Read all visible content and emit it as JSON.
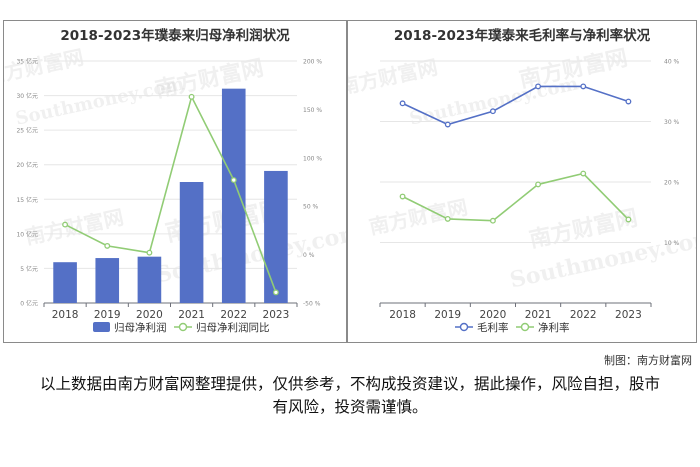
{
  "charts": [
    {
      "title": "2018-2023年璞泰来归母净利润状况",
      "chart_data": {
        "type": "bar",
        "categories": [
          "2018",
          "2019",
          "2020",
          "2021",
          "2022",
          "2023"
        ],
        "series": [
          {
            "name": "归母净利润",
            "type": "bar",
            "axis": "left",
            "color": "#5470c6",
            "values": [
              5.9,
              6.5,
              6.7,
              17.5,
              31.0,
              19.1
            ]
          },
          {
            "name": "归母净利润同比",
            "type": "line",
            "axis": "right",
            "color": "#91cc75",
            "values": [
              31,
              9,
              2,
              163,
              77,
              -39
            ]
          }
        ],
        "y_left": {
          "min": 0,
          "max": 35,
          "ticks": [
            "0 亿元",
            "5 亿元",
            "10 亿元",
            "15 亿元",
            "20 亿元",
            "25 亿元",
            "30 亿元",
            "35 亿元"
          ]
        },
        "y_right": {
          "min": -50,
          "max": 200,
          "ticks": [
            "-50 %",
            "0 %",
            "50 %",
            "100 %",
            "150 %",
            "200 %"
          ]
        },
        "legend_position": "bottom"
      }
    },
    {
      "title": "2018-2023年璞泰来毛利率与净利率状况",
      "chart_data": {
        "type": "line",
        "categories": [
          "2018",
          "2019",
          "2020",
          "2021",
          "2022",
          "2023"
        ],
        "series": [
          {
            "name": "毛利率",
            "color": "#5470c6",
            "values": [
              33.0,
              29.5,
              31.7,
              35.8,
              35.8,
              33.3
            ]
          },
          {
            "name": "净利率",
            "color": "#91cc75",
            "values": [
              17.6,
              13.9,
              13.6,
              19.6,
              21.4,
              13.8
            ]
          }
        ],
        "y_right": {
          "min": 0,
          "max": 40,
          "ticks": [
            "10 %",
            "20 %",
            "30 %",
            "40 %"
          ]
        },
        "legend_position": "bottom"
      }
    }
  ],
  "watermark": {
    "cn": "南方财富网",
    "en": "Southmoney.com"
  },
  "credit": "制图：南方财富网",
  "disclaimer": "以上数据由南方财富网整理提供，仅供参考，不构成投资建议，据此操作，风险自担，股市有风险，投资需谨慎。"
}
